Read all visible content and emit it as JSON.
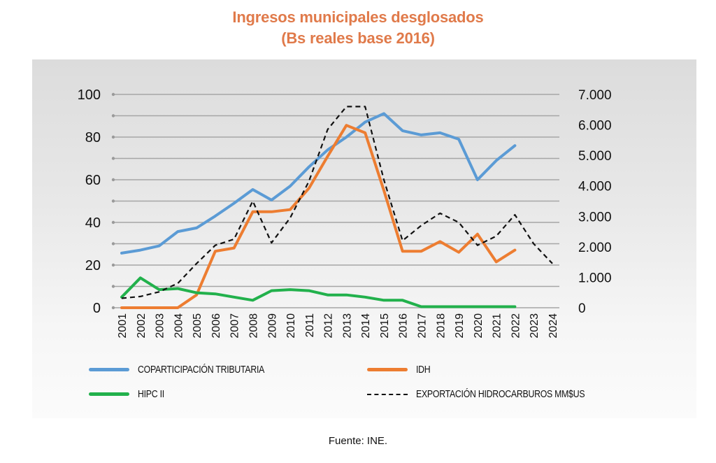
{
  "chart_data": {
    "type": "line",
    "title": "Ingresos municipales desglosados",
    "subtitle": "(Bs reales base 2016)",
    "xlabel": "",
    "ylabel": "",
    "x": [
      "2001",
      "2002",
      "2003",
      "2004",
      "2005",
      "2006",
      "2007",
      "2008",
      "2009",
      "2010",
      "2011",
      "2012",
      "2013",
      "2014",
      "2015",
      "2016",
      "2017",
      "2018",
      "2019",
      "2020",
      "2021",
      "2022",
      "2023",
      "2024"
    ],
    "y_left": {
      "ylim": [
        0,
        100
      ],
      "ticks": [
        0,
        20,
        40,
        60,
        80,
        100
      ],
      "tick_labels": [
        "0",
        "20",
        "40",
        "60",
        "80",
        "100"
      ],
      "minor_step": 10
    },
    "y_right": {
      "ylim": [
        0,
        7000
      ],
      "ticks": [
        0,
        1000,
        2000,
        3000,
        4000,
        5000,
        6000,
        7000
      ],
      "tick_labels": [
        "0",
        "1.000",
        "2.000",
        "3.000",
        "4.000",
        "5.000",
        "6.000",
        "7.000"
      ]
    },
    "grid": true,
    "legend_position": "bottom",
    "series": [
      {
        "name": "COPARTICIPACIÓN TRIBUTARIA",
        "axis": "left",
        "color": "#5b9bd5",
        "style": "solid",
        "values": [
          25.6,
          27,
          29,
          35.7,
          37.4,
          43,
          49,
          55.4,
          50.5,
          57,
          66,
          74,
          80,
          87,
          91,
          83,
          81,
          82,
          79,
          60,
          69,
          76,
          null,
          null
        ]
      },
      {
        "name": "IDH",
        "axis": "left",
        "color": "#ed7d31",
        "style": "solid",
        "values": [
          0,
          0,
          0,
          0,
          6,
          26.5,
          28,
          45,
          45,
          46,
          56,
          71,
          85.5,
          82,
          55,
          26.5,
          26.5,
          31,
          26,
          34.5,
          21.5,
          27,
          null,
          null
        ]
      },
      {
        "name": "HIPC II",
        "axis": "left",
        "color": "#22b14c",
        "style": "solid",
        "values": [
          5,
          14,
          8.5,
          9,
          7,
          6.5,
          5,
          3.5,
          8,
          8.5,
          8,
          6,
          6,
          5,
          3.5,
          3.5,
          0.5,
          0.5,
          0.5,
          0.5,
          0.5,
          0.5,
          null,
          null
        ]
      },
      {
        "name": "EXPORTACIÓN HIDROCARBUROS MM$US",
        "axis": "right",
        "color": "#111111",
        "style": "dashed",
        "values": [
          310,
          370,
          520,
          800,
          1450,
          2050,
          2250,
          3500,
          2130,
          2950,
          4150,
          5850,
          6600,
          6600,
          4200,
          2200,
          2700,
          3100,
          2800,
          2050,
          2350,
          3050,
          2100,
          1450
        ]
      }
    ]
  },
  "legend": [
    {
      "label": "COPARTICIPACIÓN TRIBUTARIA"
    },
    {
      "label": "IDH"
    },
    {
      "label": "HIPC II"
    },
    {
      "label": "EXPORTACIÓN HIDROCARBUROS MM$US"
    }
  ],
  "source": "Fuente: INE.",
  "colors": {
    "title": "#e07a4a",
    "grid": "#a6a6a6"
  }
}
